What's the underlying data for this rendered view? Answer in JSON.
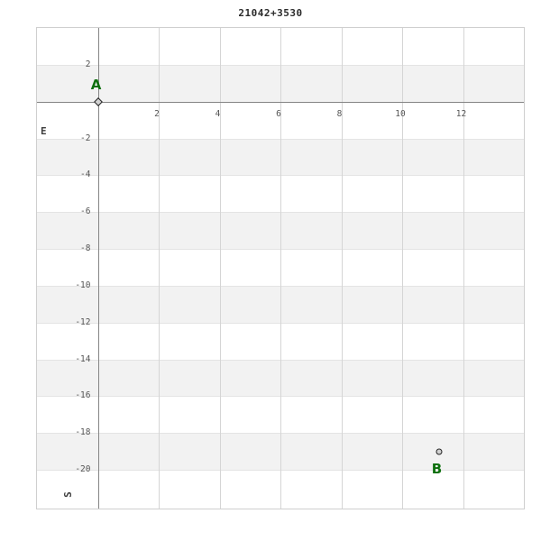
{
  "chart_data": {
    "type": "scatter",
    "title": "21042+3530",
    "xlabel": "",
    "ylabel": "",
    "direction_labels": {
      "x_axis": "E",
      "y_axis": "S"
    },
    "xlim": [
      -2,
      14
    ],
    "ylim": [
      -22.1,
      4
    ],
    "x_ticks": [
      2,
      4,
      6,
      8,
      10,
      12
    ],
    "y_ticks": [
      2,
      -2,
      -4,
      -6,
      -8,
      -10,
      -12,
      -14,
      -16,
      -18,
      -20
    ],
    "grid": true,
    "legend": "none",
    "shaded_bands_y": [
      [
        2,
        0
      ],
      [
        -2,
        -4
      ],
      [
        -6,
        -8
      ],
      [
        -10,
        -12
      ],
      [
        -14,
        -16
      ],
      [
        -18,
        -20
      ]
    ],
    "points": [
      {
        "label": "A",
        "x": 0,
        "y": 0,
        "marker": "diamond",
        "label_position": "above"
      },
      {
        "label": "B",
        "x": 11.2,
        "y": -19.0,
        "marker": "circle",
        "label_position": "below"
      }
    ],
    "colors": {
      "band": "#f2f2f2",
      "vgrid": "#d5d5d5",
      "hgrid": "#e4e4e4",
      "axis": "#858585",
      "border": "#cfcfcf",
      "tick_label": "#555555",
      "title": "#2b2b2b",
      "point_label": "#0e700e",
      "marker_fill": "#d2d2d2",
      "marker_stroke": "#222222",
      "direction_label": "#3c3c3c"
    }
  }
}
